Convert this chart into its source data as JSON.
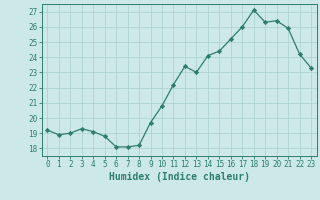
{
  "x": [
    0,
    1,
    2,
    3,
    4,
    5,
    6,
    7,
    8,
    9,
    10,
    11,
    12,
    13,
    14,
    15,
    16,
    17,
    18,
    19,
    20,
    21,
    22,
    23
  ],
  "y": [
    19.2,
    18.9,
    19.0,
    19.3,
    19.1,
    18.8,
    18.1,
    18.1,
    18.2,
    19.7,
    20.8,
    22.2,
    23.4,
    23.0,
    24.1,
    24.4,
    25.2,
    26.0,
    27.1,
    26.3,
    26.4,
    25.9,
    24.2,
    23.3
  ],
  "line_color": "#2e7d6e",
  "marker": "D",
  "marker_size": 2.2,
  "bg_color": "#cce9e7",
  "grid_color": "#afd4d0",
  "tick_color": "#2e7d6e",
  "label_color": "#2e7d6e",
  "xlabel": "Humidex (Indice chaleur)",
  "xlim": [
    -0.5,
    23.5
  ],
  "ylim": [
    17.5,
    27.5
  ],
  "yticks": [
    18,
    19,
    20,
    21,
    22,
    23,
    24,
    25,
    26,
    27
  ],
  "xticks": [
    0,
    1,
    2,
    3,
    4,
    5,
    6,
    7,
    8,
    9,
    10,
    11,
    12,
    13,
    14,
    15,
    16,
    17,
    18,
    19,
    20,
    21,
    22,
    23
  ],
  "tick_fontsize": 5.5,
  "xlabel_fontsize": 7.0
}
